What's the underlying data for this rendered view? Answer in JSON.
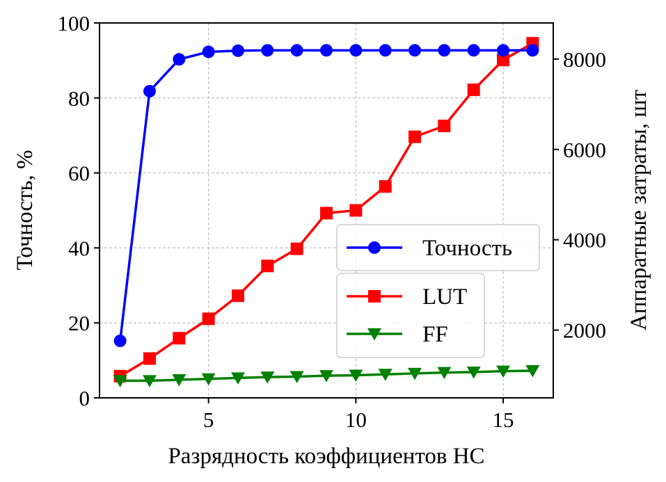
{
  "chart_data": {
    "type": "line",
    "title": "",
    "xlabel": "Разрядность коэффициентов НС",
    "ylabel_left": "Точность, %",
    "ylabel_right": "Аппаратные затраты, шт",
    "x": [
      2,
      3,
      4,
      5,
      6,
      7,
      8,
      9,
      10,
      11,
      12,
      13,
      14,
      15,
      16
    ],
    "xlim": [
      1.3,
      16.7
    ],
    "xticks": [
      5,
      10,
      15
    ],
    "ylim_left": [
      0,
      100
    ],
    "yticks_left": [
      0,
      20,
      40,
      60,
      80,
      100
    ],
    "ylim_right": [
      500,
      8800
    ],
    "yticks_right": [
      2000,
      4000,
      6000,
      8000
    ],
    "grid": true,
    "series": [
      {
        "name": "Точность",
        "axis": "left",
        "color": "#0000ff",
        "marker": "circle",
        "values": [
          15.2,
          81.8,
          90.3,
          92.3,
          92.6,
          92.7,
          92.7,
          92.7,
          92.7,
          92.7,
          92.7,
          92.7,
          92.7,
          92.7,
          92.7
        ]
      },
      {
        "name": "LUT",
        "axis": "right",
        "color": "#ff0000",
        "marker": "square",
        "values": [
          980,
          1370,
          1820,
          2250,
          2760,
          3420,
          3800,
          4590,
          4650,
          5180,
          6280,
          6520,
          7320,
          7980,
          8350
        ]
      },
      {
        "name": "FF",
        "axis": "right",
        "color": "#008000",
        "marker": "triangle-down",
        "values": [
          880,
          880,
          900,
          920,
          940,
          960,
          970,
          990,
          1000,
          1020,
          1040,
          1060,
          1070,
          1090,
          1100
        ]
      }
    ],
    "legends": [
      {
        "position": "center-right",
        "entries": [
          "Точность"
        ]
      },
      {
        "position": "lower-right",
        "entries": [
          "LUT",
          "FF"
        ]
      }
    ]
  }
}
